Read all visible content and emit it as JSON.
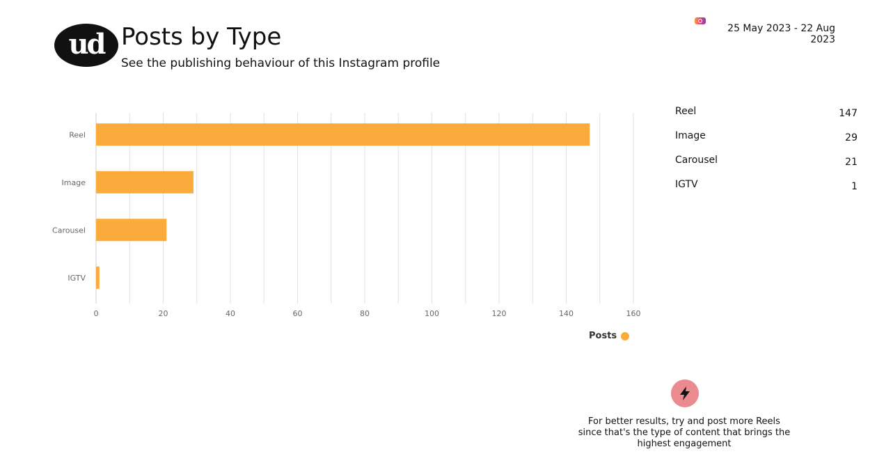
{
  "header": {
    "logo_text": "ud",
    "title": "Posts by Type",
    "subtitle": "See the publishing behaviour of this Instagram profile",
    "platform_icon": "instagram-icon",
    "date_range": "25 May 2023 - 22 Aug 2023"
  },
  "chart_data": {
    "type": "bar",
    "orientation": "horizontal",
    "categories": [
      "Reel",
      "Image",
      "Carousel",
      "IGTV"
    ],
    "series": [
      {
        "name": "Posts",
        "values": [
          147,
          29,
          21,
          1
        ],
        "color": "#fbab3c"
      }
    ],
    "xlim": [
      0,
      160
    ],
    "xticks": [
      0,
      20,
      40,
      60,
      80,
      100,
      120,
      140,
      160
    ],
    "grid": true,
    "legend_position": "bottom-right"
  },
  "summary": [
    {
      "label": "Reel",
      "value": "147"
    },
    {
      "label": "Image",
      "value": "29"
    },
    {
      "label": "Carousel",
      "value": "21"
    },
    {
      "label": "IGTV",
      "value": "1"
    }
  ],
  "tip": {
    "icon": "lightning-icon",
    "text": "For better results, try and post more Reels since that's the type of content that brings the highest engagement"
  }
}
